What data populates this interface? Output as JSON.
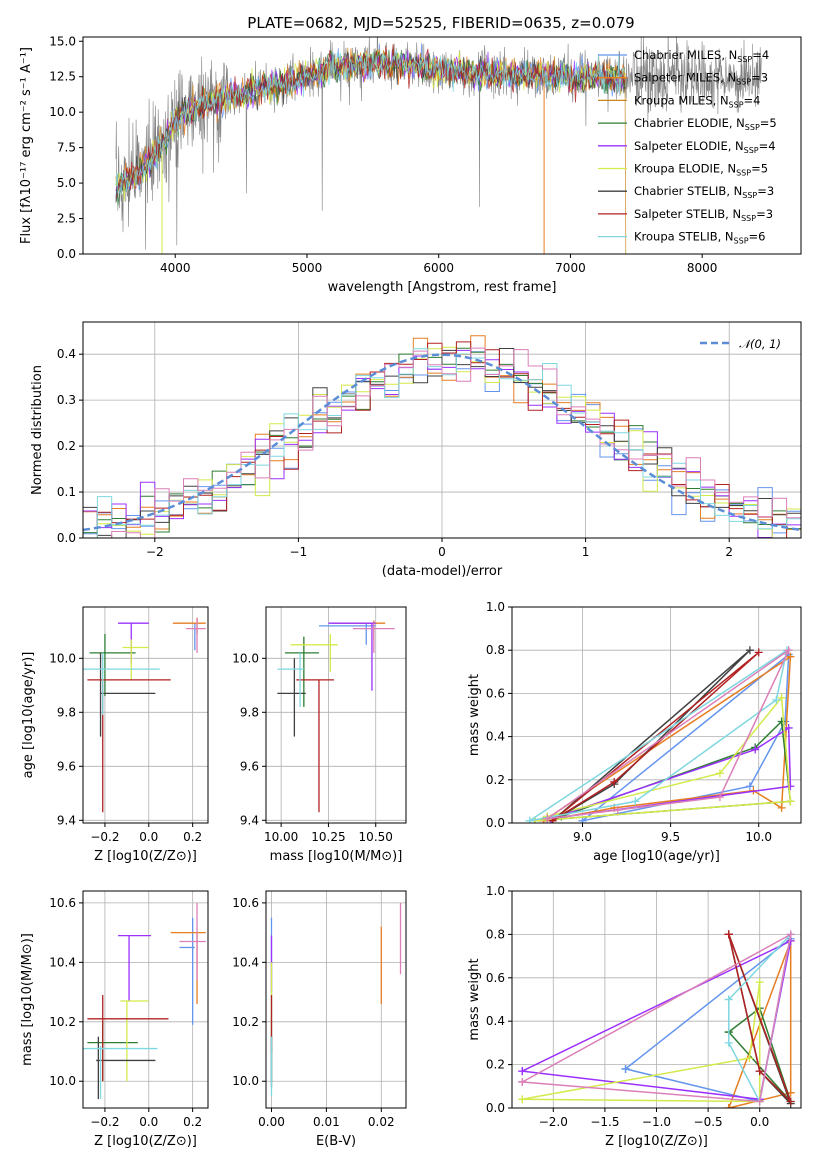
{
  "title": "PLATE=0682, MJD=52525, FIBERID=0635, z=0.079",
  "colors": [
    "#6495ED",
    "#E67E22",
    "#2E7D32",
    "#9B30FF",
    "#D4E94A",
    "#404040",
    "#B22222",
    "#7FD7E0",
    "#DB7FB8",
    "#808080"
  ],
  "chart_data": [
    {
      "type": "line",
      "name": "spectrum",
      "xlabel": "wavelength [Angstrom, rest frame]",
      "ylabel": "Flux [fλ10⁻¹⁷ erg cm⁻² s⁻¹ A⁻¹]",
      "xlim": [
        3300,
        8750
      ],
      "ylim": [
        0,
        15.3
      ],
      "xticks": [
        "4000",
        "5000",
        "6000",
        "7000",
        "8000"
      ],
      "yticks": [
        "0.0",
        "2.5",
        "5.0",
        "7.5",
        "10.0",
        "12.5",
        "15.0"
      ],
      "legend": [
        {
          "label": "Chabrier MILES, N",
          "sub": "SSP",
          "val": "=4",
          "color": "#6495ED"
        },
        {
          "label": "Salpeter MILES, N",
          "sub": "SSP",
          "val": "=3",
          "color": "#E67E22"
        },
        {
          "label": "Kroupa MILES, N",
          "sub": "SSP",
          "val": "=4",
          "color": "#C8861E"
        },
        {
          "label": "Chabrier ELODIE, N",
          "sub": "SSP",
          "val": "=5",
          "color": "#2E7D32"
        },
        {
          "label": "Salpeter ELODIE, N",
          "sub": "SSP",
          "val": "=4",
          "color": "#9B30FF"
        },
        {
          "label": "Kroupa ELODIE, N",
          "sub": "SSP",
          "val": "=5",
          "color": "#D4E94A"
        },
        {
          "label": "Chabrier STELIB, N",
          "sub": "SSP",
          "val": "=3",
          "color": "#404040"
        },
        {
          "label": "Salpeter STELIB, N",
          "sub": "SSP",
          "val": "=3",
          "color": "#B22222"
        },
        {
          "label": "Kroupa STELIB, N",
          "sub": "SSP",
          "val": "=6",
          "color": "#7FD7E0"
        }
      ],
      "continuum": {
        "x": [
          3550,
          3700,
          3900,
          4000,
          4200,
          4500,
          4800,
          5000,
          5200,
          5500,
          5800,
          6000,
          6300,
          6600,
          6900,
          7200,
          7400
        ],
        "y": [
          4.8,
          5.5,
          7.5,
          9.5,
          10.5,
          11.3,
          12.0,
          12.5,
          13.2,
          13.4,
          13.3,
          13.0,
          12.8,
          12.6,
          12.5,
          12.6,
          12.4
        ]
      }
    },
    {
      "type": "bar",
      "name": "residual histogram",
      "xlabel": "(data-model)/error",
      "ylabel": "Normed distribution",
      "xlim": [
        -2.5,
        2.5
      ],
      "ylim": [
        0,
        0.47
      ],
      "xticks": [
        "−2",
        "−1",
        "0",
        "1",
        "2"
      ],
      "yticks": [
        "0.0",
        "0.1",
        "0.2",
        "0.3",
        "0.4"
      ],
      "legend": "$\\mathcal{N}(0,1)$",
      "legend_text": "𝒩(0, 1)"
    },
    {
      "type": "scatter",
      "name": "age vs Z",
      "xlabel": "Z [log10(Z/Z⊙)]",
      "ylabel": "age  [log10(age/yr)]",
      "xlim": [
        -0.3,
        0.27
      ],
      "ylim": [
        9.39,
        10.19
      ],
      "xticks": [
        "−0.2",
        "0.0",
        "0.2"
      ],
      "xtickvals": [
        -0.2,
        0.0,
        0.2
      ],
      "yticks": [
        "9.4",
        "9.6",
        "9.8",
        "10.0"
      ],
      "ytickvals": [
        9.4,
        9.6,
        9.8,
        10.0
      ],
      "points": [
        {
          "x": 0.21,
          "y": 10.11,
          "xe": [
            0.21,
            0.21
          ],
          "ye": [
            10.03,
            10.13
          ],
          "c": "#6495ED"
        },
        {
          "x": 0.22,
          "y": 10.13,
          "xe": [
            0.11,
            0.26
          ],
          "ye": [
            10.09,
            10.15
          ],
          "c": "#E67E22"
        },
        {
          "x": -0.2,
          "y": 10.02,
          "xe": [
            -0.27,
            -0.06
          ],
          "ye": [
            9.86,
            10.09
          ],
          "c": "#2E7D32"
        },
        {
          "x": -0.08,
          "y": 10.13,
          "xe": [
            -0.14,
            0.0
          ],
          "ye": [
            9.98,
            10.13
          ],
          "c": "#9B30FF"
        },
        {
          "x": -0.08,
          "y": 10.04,
          "xe": [
            -0.12,
            0.0
          ],
          "ye": [
            9.92,
            10.07
          ],
          "c": "#D4E94A"
        },
        {
          "x": -0.22,
          "y": 9.87,
          "xe": [
            -0.22,
            0.03
          ],
          "ye": [
            9.71,
            10.02
          ],
          "c": "#404040"
        },
        {
          "x": -0.21,
          "y": 9.92,
          "xe": [
            -0.28,
            0.1
          ],
          "ye": [
            9.43,
            9.92
          ],
          "c": "#B22222"
        },
        {
          "x": -0.21,
          "y": 9.96,
          "xe": [
            -0.3,
            0.05
          ],
          "ye": [
            9.79,
            10.02
          ],
          "c": "#7FD7E0"
        },
        {
          "x": 0.22,
          "y": 10.11,
          "xe": [
            0.17,
            0.26
          ],
          "ye": [
            10.02,
            10.15
          ],
          "c": "#DB7FB8"
        }
      ]
    },
    {
      "type": "scatter",
      "name": "age vs mass",
      "xlabel": "mass [log10(M/M⊙)]",
      "ylabel": "",
      "xlim": [
        9.92,
        10.66
      ],
      "ylim": [
        9.39,
        10.19
      ],
      "xticks": [
        "10.00",
        "10.25",
        "10.50"
      ],
      "xtickvals": [
        10.0,
        10.25,
        10.5
      ],
      "yticks": [
        "9.4",
        "9.6",
        "9.8",
        "10.0"
      ],
      "ytickvals": [
        9.4,
        9.6,
        9.8,
        10.0
      ],
      "points": [
        {
          "x": 10.45,
          "y": 10.12,
          "xe": [
            10.2,
            10.5
          ],
          "ye": [
            10.05,
            10.13
          ],
          "c": "#6495ED"
        },
        {
          "x": 10.49,
          "y": 10.13,
          "xe": [
            10.27,
            10.55
          ],
          "ye": [
            10.07,
            10.14
          ],
          "c": "#E67E22"
        },
        {
          "x": 10.12,
          "y": 10.02,
          "xe": [
            10.02,
            10.2
          ],
          "ye": [
            9.82,
            10.08
          ],
          "c": "#2E7D32"
        },
        {
          "x": 10.48,
          "y": 10.13,
          "xe": [
            10.25,
            10.5
          ],
          "ye": [
            9.88,
            10.13
          ],
          "c": "#9B30FF"
        },
        {
          "x": 10.26,
          "y": 10.05,
          "xe": [
            10.05,
            10.3
          ],
          "ye": [
            9.95,
            10.09
          ],
          "c": "#D4E94A"
        },
        {
          "x": 10.07,
          "y": 9.87,
          "xe": [
            9.98,
            10.13
          ],
          "ye": [
            9.71,
            10.0
          ],
          "c": "#404040"
        },
        {
          "x": 10.2,
          "y": 9.92,
          "xe": [
            10.08,
            10.28
          ],
          "ye": [
            9.43,
            9.92
          ],
          "c": "#B22222"
        },
        {
          "x": 10.1,
          "y": 9.96,
          "xe": [
            9.98,
            10.12
          ],
          "ye": [
            9.82,
            10.02
          ],
          "c": "#7FD7E0"
        },
        {
          "x": 10.49,
          "y": 10.11,
          "xe": [
            10.38,
            10.6
          ],
          "ye": [
            10.02,
            10.13
          ],
          "c": "#DB7FB8"
        }
      ]
    },
    {
      "type": "line",
      "name": "mass weight vs age",
      "xlabel": "age  [log10(age/yr)]",
      "ylabel": "mass weight",
      "xlim": [
        8.6,
        10.24
      ],
      "ylim": [
        0,
        1
      ],
      "xticks": [
        "9.0",
        "9.5",
        "10.0"
      ],
      "xtickvals": [
        9.0,
        9.5,
        10.0
      ],
      "yticks": [
        "0.0",
        "0.2",
        "0.4",
        "0.6",
        "0.8",
        "1.0"
      ],
      "ytickvals": [
        0,
        0.2,
        0.4,
        0.6,
        0.8,
        1.0
      ],
      "series": [
        {
          "c": "#6495ED",
          "x": [
            9.0,
            9.95,
            10.15,
            10.17,
            9.0
          ],
          "y": [
            0.01,
            0.17,
            0.47,
            0.78,
            0.01
          ]
        },
        {
          "c": "#E67E22",
          "x": [
            8.78,
            9.18,
            9.97,
            10.13,
            10.18,
            8.78
          ],
          "y": [
            0.01,
            0.07,
            0.15,
            0.07,
            0.77,
            0.01
          ]
        },
        {
          "c": "#2E7D32",
          "x": [
            8.73,
            8.8,
            8.88,
            9.98,
            10.13,
            10.18,
            8.73
          ],
          "y": [
            0.01,
            0.03,
            0.03,
            0.35,
            0.47,
            0.1,
            0.01
          ]
        },
        {
          "c": "#9B30FF",
          "x": [
            8.73,
            8.82,
            9.98,
            10.17,
            10.18,
            8.73
          ],
          "y": [
            0.01,
            0.02,
            0.34,
            0.44,
            0.17,
            0.01
          ]
        },
        {
          "c": "#D4E94A",
          "x": [
            8.73,
            8.8,
            9.78,
            10.13,
            10.18,
            8.73
          ],
          "y": [
            0.01,
            0.03,
            0.23,
            0.58,
            0.1,
            0.01
          ]
        },
        {
          "c": "#404040",
          "x": [
            8.83,
            9.18,
            9.95,
            8.83
          ],
          "y": [
            0.01,
            0.18,
            0.8,
            0.01
          ]
        },
        {
          "c": "#B22222",
          "x": [
            8.83,
            9.18,
            10.0,
            8.83
          ],
          "y": [
            0.01,
            0.19,
            0.79,
            0.01
          ]
        },
        {
          "c": "#7FD7E0",
          "x": [
            8.7,
            9.3,
            10.1,
            10.16,
            8.7
          ],
          "y": [
            0.01,
            0.1,
            0.57,
            0.8,
            0.01
          ]
        },
        {
          "c": "#DB7FB8",
          "x": [
            8.8,
            9.2,
            9.78,
            10.17,
            8.8
          ],
          "y": [
            0.02,
            0.06,
            0.12,
            0.8,
            0.02
          ]
        }
      ]
    },
    {
      "type": "scatter",
      "name": "mass vs Z",
      "xlabel": "Z [log10(Z/Z⊙)]",
      "ylabel": "mass [log10(M/M⊙)]",
      "xlim": [
        -0.3,
        0.27
      ],
      "ylim": [
        9.91,
        10.64
      ],
      "xticks": [
        "−0.2",
        "0.0",
        "0.2"
      ],
      "xtickvals": [
        -0.2,
        0.0,
        0.2
      ],
      "yticks": [
        "10.0",
        "10.2",
        "10.4",
        "10.6"
      ],
      "ytickvals": [
        10.0,
        10.2,
        10.4,
        10.6
      ],
      "points": [
        {
          "x": 0.2,
          "y": 10.45,
          "xe": [
            0.14,
            0.21
          ],
          "ye": [
            10.19,
            10.55
          ],
          "c": "#6495ED"
        },
        {
          "x": 0.22,
          "y": 10.5,
          "xe": [
            0.1,
            0.26
          ],
          "ye": [
            10.26,
            10.5
          ],
          "c": "#E67E22"
        },
        {
          "x": -0.21,
          "y": 10.13,
          "xe": [
            -0.28,
            -0.05
          ],
          "ye": [
            10.0,
            10.2
          ],
          "c": "#2E7D32"
        },
        {
          "x": -0.09,
          "y": 10.49,
          "xe": [
            -0.14,
            0.01
          ],
          "ye": [
            10.27,
            10.49
          ],
          "c": "#9B30FF"
        },
        {
          "x": -0.1,
          "y": 10.27,
          "xe": [
            -0.13,
            0.0
          ],
          "ye": [
            10.0,
            10.27
          ],
          "c": "#D4E94A"
        },
        {
          "x": -0.23,
          "y": 10.07,
          "xe": [
            -0.24,
            0.03
          ],
          "ye": [
            9.94,
            10.15
          ],
          "c": "#404040"
        },
        {
          "x": -0.21,
          "y": 10.21,
          "xe": [
            -0.28,
            0.09
          ],
          "ye": [
            10.0,
            10.29
          ],
          "c": "#B22222"
        },
        {
          "x": -0.22,
          "y": 10.11,
          "xe": [
            -0.3,
            0.04
          ],
          "ye": [
            9.94,
            10.12
          ],
          "c": "#7FD7E0"
        },
        {
          "x": 0.22,
          "y": 10.47,
          "xe": [
            0.14,
            0.26
          ],
          "ye": [
            10.34,
            10.6
          ],
          "c": "#DB7FB8"
        }
      ]
    },
    {
      "type": "scatter",
      "name": "mass vs E(B-V)",
      "xlabel": "E(B-V)",
      "ylabel": "",
      "xlim": [
        -0.001,
        0.0245
      ],
      "ylim": [
        9.91,
        10.64
      ],
      "xticks": [
        "0.00",
        "0.01",
        "0.02"
      ],
      "xtickvals": [
        0.0,
        0.01,
        0.02
      ],
      "yticks": [
        "10.0",
        "10.2",
        "10.4",
        "10.6"
      ],
      "ytickvals": [
        10.0,
        10.2,
        10.4,
        10.6
      ],
      "points": [
        {
          "x": 0.0,
          "y": 10.45,
          "xe": [
            0,
            0
          ],
          "ye": [
            10.2,
            10.55
          ],
          "c": "#6495ED"
        },
        {
          "x": 0.02,
          "y": 10.5,
          "xe": [
            0.02,
            0.02
          ],
          "ye": [
            10.26,
            10.52
          ],
          "c": "#E67E22"
        },
        {
          "x": 0.0,
          "y": 10.13,
          "xe": [
            0,
            0
          ],
          "ye": [
            10.0,
            10.2
          ],
          "c": "#2E7D32"
        },
        {
          "x": 0.0,
          "y": 10.49,
          "xe": [
            0,
            0
          ],
          "ye": [
            10.3,
            10.49
          ],
          "c": "#9B30FF"
        },
        {
          "x": 0.0,
          "y": 10.27,
          "xe": [
            0,
            0
          ],
          "ye": [
            10.2,
            10.4
          ],
          "c": "#D4E94A"
        },
        {
          "x": 0.0,
          "y": 10.07,
          "xe": [
            0,
            0
          ],
          "ye": [
            9.98,
            10.15
          ],
          "c": "#404040"
        },
        {
          "x": 0.0,
          "y": 10.21,
          "xe": [
            0,
            0
          ],
          "ye": [
            10.1,
            10.29
          ],
          "c": "#B22222"
        },
        {
          "x": 0.0,
          "y": 10.11,
          "xe": [
            0,
            0
          ],
          "ye": [
            9.95,
            10.15
          ],
          "c": "#7FD7E0"
        },
        {
          "x": 0.0235,
          "y": 10.47,
          "xe": [
            0.0235,
            0.0235
          ],
          "ye": [
            10.36,
            10.6
          ],
          "c": "#DB7FB8"
        }
      ]
    },
    {
      "type": "line",
      "name": "mass weight vs Z",
      "xlabel": "Z [log10(Z/Z⊙)]",
      "ylabel": "mass weight",
      "xlim": [
        -2.4,
        0.4
      ],
      "ylim": [
        0,
        1
      ],
      "xticks": [
        "−2.0",
        "−1.5",
        "−1.0",
        "−0.5",
        "0.0"
      ],
      "xtickvals": [
        -2.0,
        -1.5,
        -1.0,
        -0.5,
        0.0
      ],
      "yticks": [
        "0.0",
        "0.2",
        "0.4",
        "0.6",
        "0.8",
        "1.0"
      ],
      "ytickvals": [
        0,
        0.2,
        0.4,
        0.6,
        0.8,
        1.0
      ],
      "series": [
        {
          "c": "#6495ED",
          "x": [
            -1.3,
            0.0,
            0.3,
            -1.3
          ],
          "y": [
            0.18,
            0.03,
            0.78,
            0.18
          ]
        },
        {
          "c": "#E67E22",
          "x": [
            -0.3,
            0.3,
            0.3,
            -0.3
          ],
          "y": [
            0.0,
            0.77,
            0.07,
            0.0
          ]
        },
        {
          "c": "#2E7D32",
          "x": [
            -0.3,
            0.0,
            0.3,
            -0.3
          ],
          "y": [
            0.35,
            0.46,
            0.03,
            0.35
          ]
        },
        {
          "c": "#9B30FF",
          "x": [
            -2.3,
            0.0,
            0.3,
            -2.3
          ],
          "y": [
            0.17,
            0.04,
            0.77,
            0.17
          ]
        },
        {
          "c": "#D4E94A",
          "x": [
            -2.3,
            -0.1,
            0.0,
            0.0,
            -2.3
          ],
          "y": [
            0.04,
            0.23,
            0.58,
            0.03,
            0.04
          ]
        },
        {
          "c": "#404040",
          "x": [
            -0.3,
            0.0,
            0.3,
            -0.3
          ],
          "y": [
            0.8,
            0.17,
            0.02,
            0.8
          ]
        },
        {
          "c": "#B22222",
          "x": [
            -0.3,
            0.0,
            0.3,
            -0.3
          ],
          "y": [
            0.8,
            0.17,
            0.03,
            0.8
          ]
        },
        {
          "c": "#7FD7E0",
          "x": [
            -0.3,
            -0.3,
            0.0,
            0.3,
            -0.3
          ],
          "y": [
            0.5,
            0.3,
            0.03,
            0.8,
            0.5
          ]
        },
        {
          "c": "#DB7FB8",
          "x": [
            -2.3,
            0.0,
            0.3,
            -2.3
          ],
          "y": [
            0.12,
            0.03,
            0.8,
            0.12
          ]
        }
      ]
    }
  ]
}
